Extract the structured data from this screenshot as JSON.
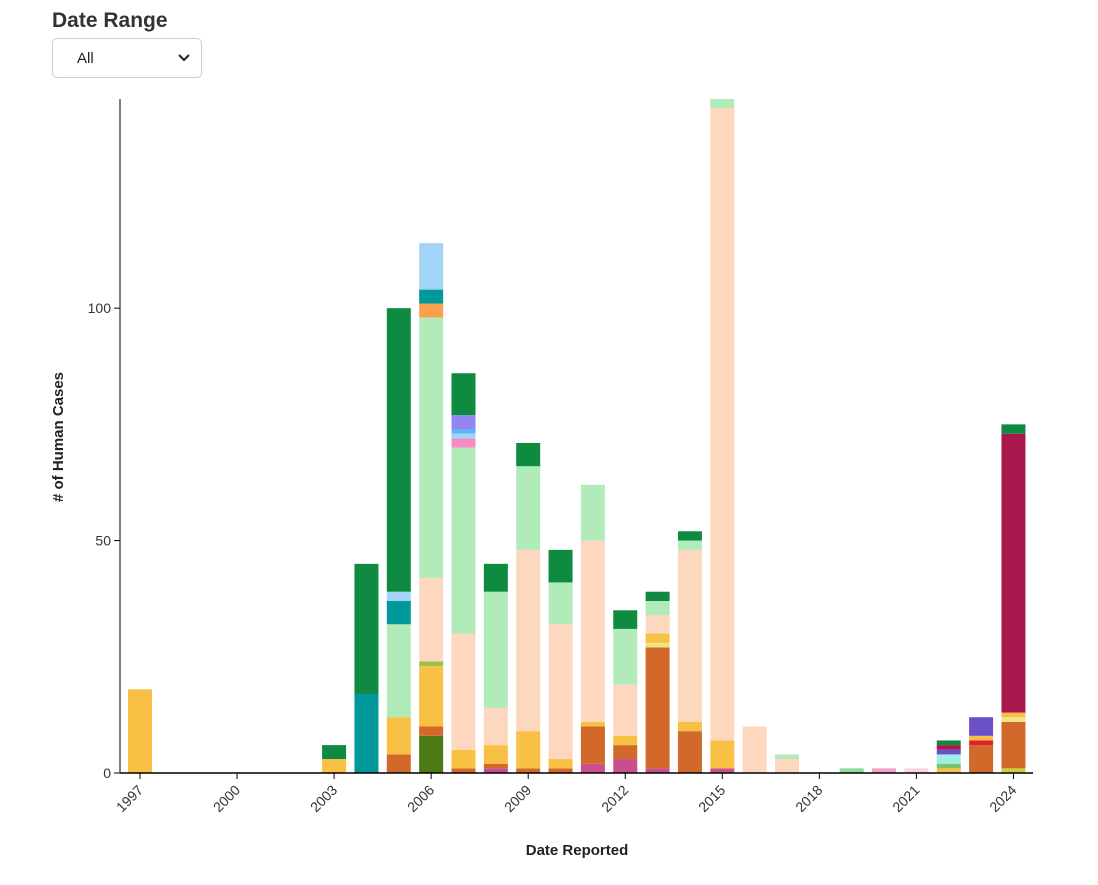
{
  "controls": {
    "title": "Date Range",
    "selected": "All"
  },
  "chart_data": {
    "type": "bar",
    "stacked": true,
    "xlabel": "Date Reported",
    "ylabel": "# of Human Cases",
    "ylim": [
      0,
      145
    ],
    "yticks": [
      0,
      50,
      100
    ],
    "xticks": [
      1997,
      2000,
      2003,
      2006,
      2009,
      2012,
      2015,
      2018,
      2021,
      2024
    ],
    "grid": false,
    "stacks": [
      {
        "year": 1997,
        "segments": [
          {
            "value": 18,
            "color": "#F9C143"
          }
        ]
      },
      {
        "year": 2003,
        "segments": [
          {
            "value": 3,
            "color": "#F9C143"
          },
          {
            "value": 3,
            "color": "#0E8A41"
          }
        ]
      },
      {
        "year": 2004,
        "segments": [
          {
            "value": 17,
            "color": "#00989A"
          },
          {
            "value": 28,
            "color": "#0E8A41"
          }
        ]
      },
      {
        "year": 2005,
        "segments": [
          {
            "value": 4,
            "color": "#D2682A"
          },
          {
            "value": 8,
            "color": "#F9C143"
          },
          {
            "value": 20,
            "color": "#B2EBBA"
          },
          {
            "value": 5,
            "color": "#00989A"
          },
          {
            "value": 2,
            "color": "#A4D3F8"
          },
          {
            "value": 61,
            "color": "#0E8A41"
          }
        ]
      },
      {
        "year": 2006,
        "segments": [
          {
            "value": 8,
            "color": "#4D7A14"
          },
          {
            "value": 2,
            "color": "#D2682A"
          },
          {
            "value": 13,
            "color": "#F9C143"
          },
          {
            "value": 1,
            "color": "#9CC04A"
          },
          {
            "value": 18,
            "color": "#FDD8BE"
          },
          {
            "value": 56,
            "color": "#B2EBBA"
          },
          {
            "value": 3,
            "color": "#F9A04F"
          },
          {
            "value": 3,
            "color": "#00989A"
          },
          {
            "value": 10,
            "color": "#A4D3F8"
          }
        ]
      },
      {
        "year": 2007,
        "segments": [
          {
            "value": 1,
            "color": "#D2682A"
          },
          {
            "value": 4,
            "color": "#F9C143"
          },
          {
            "value": 25,
            "color": "#FDD8BE"
          },
          {
            "value": 40,
            "color": "#B2EBBA"
          },
          {
            "value": 2,
            "color": "#F28CC3"
          },
          {
            "value": 1,
            "color": "#A4D3F8"
          },
          {
            "value": 1,
            "color": "#5FB6F2"
          },
          {
            "value": 3,
            "color": "#9485F2"
          },
          {
            "value": 9,
            "color": "#0E8A41"
          }
        ]
      },
      {
        "year": 2008,
        "segments": [
          {
            "value": 1,
            "color": "#C74F8F"
          },
          {
            "value": 1,
            "color": "#D2682A"
          },
          {
            "value": 4,
            "color": "#F9C143"
          },
          {
            "value": 8,
            "color": "#FDD8BE"
          },
          {
            "value": 25,
            "color": "#B2EBBA"
          },
          {
            "value": 6,
            "color": "#0E8A41"
          }
        ]
      },
      {
        "year": 2009,
        "segments": [
          {
            "value": 1,
            "color": "#D2682A"
          },
          {
            "value": 8,
            "color": "#F9C143"
          },
          {
            "value": 39,
            "color": "#FDD8BE"
          },
          {
            "value": 18,
            "color": "#B2EBBA"
          },
          {
            "value": 5,
            "color": "#0E8A41"
          }
        ]
      },
      {
        "year": 2010,
        "segments": [
          {
            "value": 1,
            "color": "#D2682A"
          },
          {
            "value": 2,
            "color": "#F9C143"
          },
          {
            "value": 29,
            "color": "#FDD8BE"
          },
          {
            "value": 9,
            "color": "#B2EBBA"
          },
          {
            "value": 7,
            "color": "#0E8A41"
          }
        ]
      },
      {
        "year": 2011,
        "segments": [
          {
            "value": 2,
            "color": "#C74F8F"
          },
          {
            "value": 8,
            "color": "#D2682A"
          },
          {
            "value": 1,
            "color": "#F9C143"
          },
          {
            "value": 39,
            "color": "#FDD8BE"
          },
          {
            "value": 12,
            "color": "#B2EBBA"
          }
        ]
      },
      {
        "year": 2012,
        "segments": [
          {
            "value": 3,
            "color": "#C74F8F"
          },
          {
            "value": 3,
            "color": "#D2682A"
          },
          {
            "value": 2,
            "color": "#F9C143"
          },
          {
            "value": 11,
            "color": "#FDD8BE"
          },
          {
            "value": 12,
            "color": "#B2EBBA"
          },
          {
            "value": 4,
            "color": "#0E8A41"
          }
        ]
      },
      {
        "year": 2013,
        "segments": [
          {
            "value": 1,
            "color": "#C74F8F"
          },
          {
            "value": 26,
            "color": "#D2682A"
          },
          {
            "value": 1,
            "color": "#F1E48A"
          },
          {
            "value": 2,
            "color": "#F9C143"
          },
          {
            "value": 4,
            "color": "#FDD8BE"
          },
          {
            "value": 3,
            "color": "#B2EBBA"
          },
          {
            "value": 2,
            "color": "#0E8A41"
          }
        ]
      },
      {
        "year": 2014,
        "segments": [
          {
            "value": 9,
            "color": "#D2682A"
          },
          {
            "value": 2,
            "color": "#F9C143"
          },
          {
            "value": 37,
            "color": "#FDD8BE"
          },
          {
            "value": 2,
            "color": "#B2EBBA"
          },
          {
            "value": 2,
            "color": "#0E8A41"
          }
        ]
      },
      {
        "year": 2015,
        "segments": [
          {
            "value": 1,
            "color": "#C74F8F"
          },
          {
            "value": 6,
            "color": "#F9C143"
          },
          {
            "value": 136,
            "color": "#FDD8BE"
          },
          {
            "value": 2,
            "color": "#B2EBBA"
          }
        ]
      },
      {
        "year": 2016,
        "segments": [
          {
            "value": 10,
            "color": "#FDD8BE"
          }
        ]
      },
      {
        "year": 2017,
        "segments": [
          {
            "value": 3,
            "color": "#FDD8BE"
          },
          {
            "value": 1,
            "color": "#B2EBBA"
          }
        ]
      },
      {
        "year": 2019,
        "segments": [
          {
            "value": 1,
            "color": "#8FD9A0"
          }
        ]
      },
      {
        "year": 2020,
        "segments": [
          {
            "value": 1,
            "color": "#F0A0CC"
          }
        ]
      },
      {
        "year": 2021,
        "segments": [
          {
            "value": 1,
            "color": "#FAD4E4"
          }
        ]
      },
      {
        "year": 2022,
        "segments": [
          {
            "value": 1,
            "color": "#F9C143"
          },
          {
            "value": 1,
            "color": "#7CC46A"
          },
          {
            "value": 2,
            "color": "#A0EDE8"
          },
          {
            "value": 1,
            "color": "#6A51C8"
          },
          {
            "value": 1,
            "color": "#A8184C"
          },
          {
            "value": 1,
            "color": "#0E8A41"
          }
        ]
      },
      {
        "year": 2023,
        "segments": [
          {
            "value": 6,
            "color": "#D2682A"
          },
          {
            "value": 1,
            "color": "#E0202E"
          },
          {
            "value": 1,
            "color": "#F9C143"
          },
          {
            "value": 4,
            "color": "#6A51C8"
          }
        ]
      },
      {
        "year": 2024,
        "segments": [
          {
            "value": 1,
            "color": "#C8D040"
          },
          {
            "value": 10,
            "color": "#D2682A"
          },
          {
            "value": 1,
            "color": "#F1E48A"
          },
          {
            "value": 1,
            "color": "#F9C143"
          },
          {
            "value": 60,
            "color": "#A8184C"
          },
          {
            "value": 2,
            "color": "#0E8A41"
          }
        ]
      }
    ]
  }
}
